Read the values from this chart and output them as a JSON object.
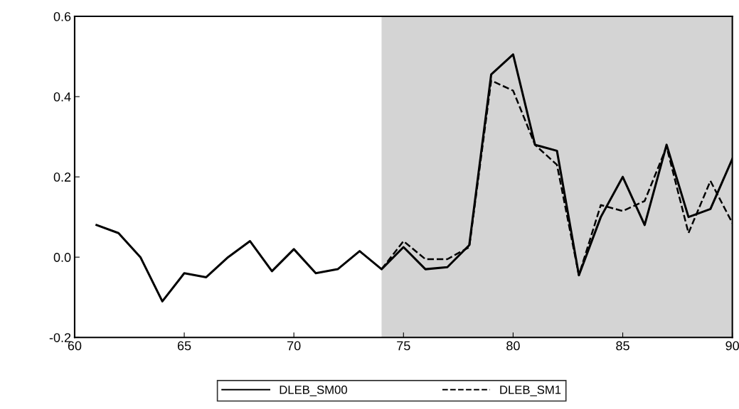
{
  "chart_data": {
    "type": "line",
    "xlim": [
      60,
      90
    ],
    "xticks": [
      60,
      65,
      70,
      75,
      80,
      85,
      90
    ],
    "ylim": [
      -0.2,
      0.6
    ],
    "yticks": [
      {
        "value": -0.2,
        "label": "-0.2"
      },
      {
        "value": 0.0,
        "label": "0.0"
      },
      {
        "value": 0.2,
        "label": "0.2"
      },
      {
        "value": 0.4,
        "label": "0.4"
      },
      {
        "value": 0.6,
        "label": "0.6"
      }
    ],
    "series": [
      {
        "name": "DLEB_SM00",
        "color": "#000000",
        "line_style": "solid",
        "x": [
          61,
          62,
          63,
          64,
          65,
          66,
          67,
          68,
          69,
          70,
          71,
          72,
          73,
          74,
          75,
          76,
          77,
          78,
          79,
          80,
          81,
          82,
          83,
          84,
          85,
          86,
          87,
          88,
          89,
          90
        ],
        "values": [
          0.08,
          0.06,
          0.0,
          -0.11,
          -0.04,
          -0.05,
          0.0,
          0.04,
          -0.035,
          0.02,
          -0.04,
          -0.03,
          0.015,
          -0.03,
          0.025,
          -0.03,
          -0.025,
          0.03,
          0.455,
          0.505,
          0.28,
          0.265,
          -0.045,
          0.1,
          0.2,
          0.08,
          0.28,
          0.1,
          0.12,
          0.245
        ]
      },
      {
        "name": "DLEB_SM1",
        "color": "#000000",
        "line_style": "dashed",
        "x": [
          74,
          75,
          76,
          77,
          78,
          79,
          80,
          81,
          82,
          83,
          84,
          85,
          86,
          87,
          88,
          89,
          90
        ],
        "values": [
          -0.03,
          0.04,
          -0.005,
          -0.005,
          0.025,
          0.44,
          0.415,
          0.28,
          0.23,
          -0.045,
          0.13,
          0.115,
          0.14,
          0.275,
          0.06,
          0.19,
          0.085
        ]
      }
    ],
    "bands": [
      {
        "axis": "x",
        "from": 74,
        "to": 90,
        "color": "#d4d4d4"
      }
    ],
    "grid": false,
    "legend": "bottom"
  }
}
